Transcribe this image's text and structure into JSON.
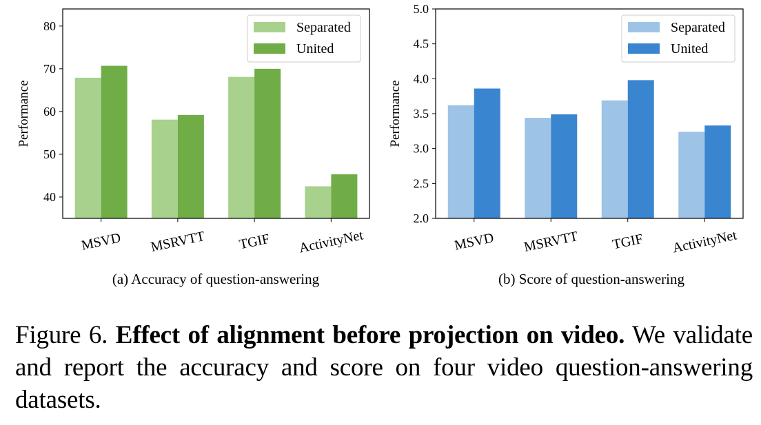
{
  "figure": {
    "label": "Figure 6.",
    "title": "Effect of alignment before projection on video.",
    "text": "We validate and report the accuracy and score on four video question-answering datasets."
  },
  "chart_data": [
    {
      "type": "bar",
      "subcaption": "(a) Accuracy of question-answering",
      "categories": [
        "MSVD",
        "MSRVTT",
        "TGIF",
        "ActivityNet"
      ],
      "series": [
        {
          "name": "Separated",
          "color": "#a8d18d",
          "values": [
            67.9,
            58.1,
            68.1,
            42.5
          ]
        },
        {
          "name": "United",
          "color": "#70ad47",
          "values": [
            70.7,
            59.2,
            70.0,
            45.3
          ]
        }
      ],
      "ylabel": "Performance",
      "ylim": [
        35,
        84
      ],
      "yticks": [
        40,
        50,
        60,
        70,
        80
      ],
      "legend": "top-right"
    },
    {
      "type": "bar",
      "subcaption": "(b) Score of question-answering",
      "categories": [
        "MSVD",
        "MSRVTT",
        "TGIF",
        "ActivityNet"
      ],
      "series": [
        {
          "name": "Separated",
          "color": "#9dc3e6",
          "values": [
            3.62,
            3.44,
            3.69,
            3.24
          ]
        },
        {
          "name": "United",
          "color": "#3a85d0",
          "values": [
            3.86,
            3.49,
            3.98,
            3.33
          ]
        }
      ],
      "ylabel": "Performance",
      "ylim": [
        2.0,
        5.0
      ],
      "yticks": [
        "2.0",
        "2.5",
        "3.0",
        "3.5",
        "4.0",
        "4.5",
        "5.0"
      ],
      "legend": "top-right"
    }
  ]
}
